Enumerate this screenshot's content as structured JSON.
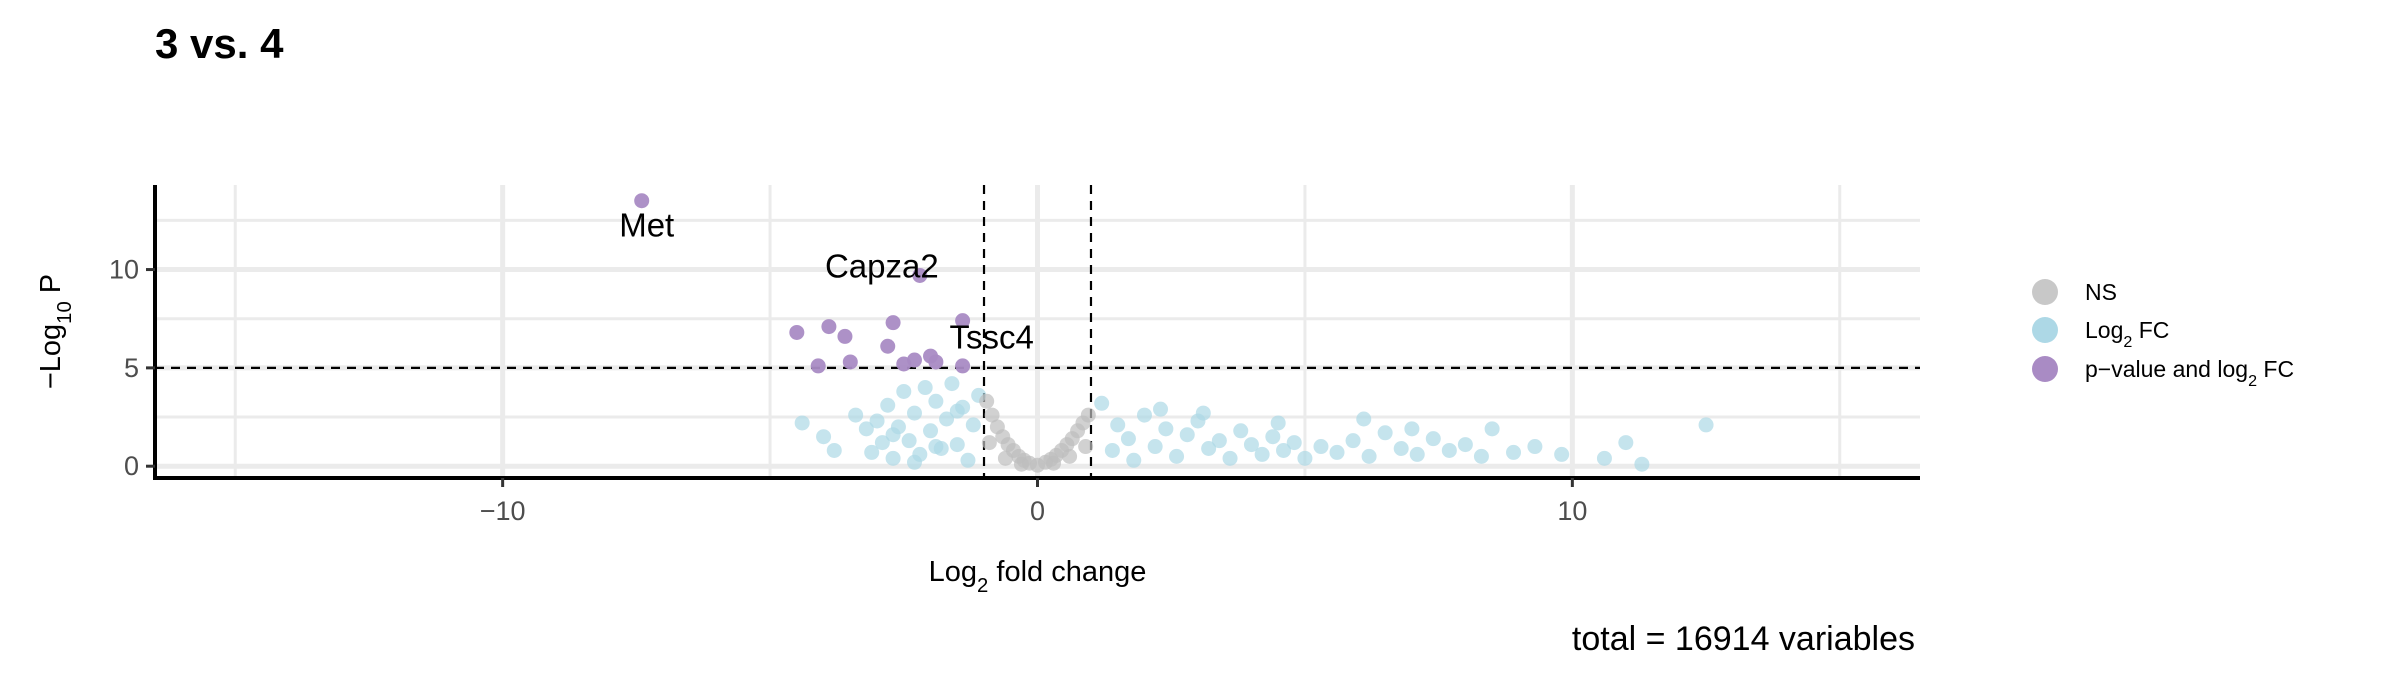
{
  "title": "3 vs. 4",
  "caption": "total = 16914 variables",
  "chart_data": {
    "type": "scatter",
    "title": "3 vs. 4",
    "xlabel": {
      "prefix": "Log",
      "sub": "2",
      "suffix": " fold change"
    },
    "ylabel": {
      "prefix": "−Log",
      "sub": "10",
      "suffix": " P"
    },
    "xlim": [
      -16.5,
      16.5
    ],
    "ylim": [
      -0.6,
      14.3
    ],
    "x_ticks": [
      -10,
      0,
      10
    ],
    "x_tick_labels": [
      "−10",
      "0",
      "10"
    ],
    "y_ticks": [
      0,
      5,
      10
    ],
    "y_tick_labels": [
      "0",
      "5",
      "10"
    ],
    "grid": true,
    "cutoffs": {
      "fc": [
        -1,
        1
      ],
      "p_log10": 5
    },
    "legend": {
      "placement": "right",
      "entries": [
        {
          "key": "ns",
          "label": "NS",
          "color": "#c8c8c8"
        },
        {
          "key": "fc",
          "label_prefix": "Log",
          "label_sub": "2",
          "label_suffix": " FC",
          "color": "#add8e6"
        },
        {
          "key": "pfc",
          "label_prefix": "p−value and log",
          "label_sub": "2",
          "label_suffix": " FC",
          "color": "#a98bc4"
        }
      ]
    },
    "colors": {
      "ns": "#bebebe",
      "fc": "#add8e6",
      "pfc": "#a98bc4"
    },
    "series": [
      {
        "key": "pfc",
        "points": [
          [
            -7.4,
            13.5
          ],
          [
            -2.2,
            9.7
          ],
          [
            -4.5,
            6.8
          ],
          [
            -3.9,
            7.1
          ],
          [
            -3.6,
            6.6
          ],
          [
            -2.7,
            7.3
          ],
          [
            -1.4,
            7.4
          ],
          [
            -2.8,
            6.1
          ],
          [
            -2.3,
            5.4
          ],
          [
            -2.0,
            5.6
          ],
          [
            -1.9,
            5.3
          ],
          [
            -2.5,
            5.2
          ],
          [
            -4.1,
            5.1
          ],
          [
            -3.5,
            5.3
          ],
          [
            -1.4,
            5.1
          ]
        ]
      },
      {
        "key": "fc",
        "points": [
          [
            -4.4,
            2.2
          ],
          [
            -4.0,
            1.5
          ],
          [
            -3.8,
            0.8
          ],
          [
            -3.4,
            2.6
          ],
          [
            -3.2,
            1.9
          ],
          [
            -3.1,
            0.7
          ],
          [
            -3.0,
            2.3
          ],
          [
            -2.9,
            1.2
          ],
          [
            -2.8,
            3.1
          ],
          [
            -2.7,
            0.4
          ],
          [
            -2.6,
            2.0
          ],
          [
            -2.5,
            3.8
          ],
          [
            -2.4,
            1.3
          ],
          [
            -2.3,
            2.7
          ],
          [
            -2.2,
            0.6
          ],
          [
            -2.1,
            4.0
          ],
          [
            -2.0,
            1.8
          ],
          [
            -1.9,
            3.3
          ],
          [
            -1.8,
            0.9
          ],
          [
            -1.7,
            2.4
          ],
          [
            -1.6,
            4.2
          ],
          [
            -1.5,
            1.1
          ],
          [
            -1.4,
            3.0
          ],
          [
            -1.3,
            0.3
          ],
          [
            -1.2,
            2.1
          ],
          [
            -1.1,
            3.6
          ],
          [
            -2.7,
            1.6
          ],
          [
            -2.3,
            0.2
          ],
          [
            -1.9,
            1.0
          ],
          [
            -1.5,
            2.8
          ],
          [
            1.2,
            3.2
          ],
          [
            1.4,
            0.8
          ],
          [
            1.5,
            2.1
          ],
          [
            1.7,
            1.4
          ],
          [
            1.8,
            0.3
          ],
          [
            2.0,
            2.6
          ],
          [
            2.2,
            1.0
          ],
          [
            2.4,
            1.9
          ],
          [
            2.6,
            0.5
          ],
          [
            2.8,
            1.6
          ],
          [
            3.0,
            2.3
          ],
          [
            3.2,
            0.9
          ],
          [
            3.4,
            1.3
          ],
          [
            3.6,
            0.4
          ],
          [
            3.8,
            1.8
          ],
          [
            4.0,
            1.1
          ],
          [
            4.2,
            0.6
          ],
          [
            4.4,
            1.5
          ],
          [
            4.6,
            0.8
          ],
          [
            4.8,
            1.2
          ],
          [
            5.0,
            0.4
          ],
          [
            5.3,
            1.0
          ],
          [
            5.6,
            0.7
          ],
          [
            5.9,
            1.3
          ],
          [
            6.2,
            0.5
          ],
          [
            6.5,
            1.7
          ],
          [
            6.8,
            0.9
          ],
          [
            7.1,
            0.6
          ],
          [
            7.4,
            1.4
          ],
          [
            7.7,
            0.8
          ],
          [
            8.0,
            1.1
          ],
          [
            8.3,
            0.5
          ],
          [
            8.5,
            1.9
          ],
          [
            8.9,
            0.7
          ],
          [
            9.3,
            1.0
          ],
          [
            9.8,
            0.6
          ],
          [
            10.6,
            0.4
          ],
          [
            11.0,
            1.2
          ],
          [
            11.3,
            0.1
          ],
          [
            12.5,
            2.1
          ],
          [
            2.3,
            2.9
          ],
          [
            3.1,
            2.7
          ],
          [
            4.5,
            2.2
          ],
          [
            6.1,
            2.4
          ],
          [
            7.0,
            1.9
          ]
        ]
      },
      {
        "key": "ns",
        "points": [
          [
            -0.95,
            3.3
          ],
          [
            -0.85,
            2.6
          ],
          [
            -0.75,
            2.0
          ],
          [
            -0.65,
            1.5
          ],
          [
            -0.55,
            1.1
          ],
          [
            -0.45,
            0.8
          ],
          [
            -0.35,
            0.5
          ],
          [
            -0.25,
            0.3
          ],
          [
            -0.15,
            0.15
          ],
          [
            0.0,
            0.05
          ],
          [
            0.15,
            0.2
          ],
          [
            0.25,
            0.35
          ],
          [
            0.35,
            0.55
          ],
          [
            0.45,
            0.8
          ],
          [
            0.55,
            1.1
          ],
          [
            0.65,
            1.4
          ],
          [
            0.75,
            1.8
          ],
          [
            0.85,
            2.2
          ],
          [
            0.95,
            2.6
          ],
          [
            -0.9,
            1.2
          ],
          [
            -0.6,
            0.4
          ],
          [
            -0.3,
            0.1
          ],
          [
            0.3,
            0.15
          ],
          [
            0.6,
            0.5
          ],
          [
            0.9,
            1.0
          ]
        ]
      }
    ],
    "labels": [
      {
        "text": "Met",
        "x": -7.4,
        "y": 13.5
      },
      {
        "text": "Capza2",
        "x": -2.2,
        "y": 9.7
      },
      {
        "text": "Tssc4",
        "x": -1.4,
        "y": 7.4
      }
    ]
  }
}
